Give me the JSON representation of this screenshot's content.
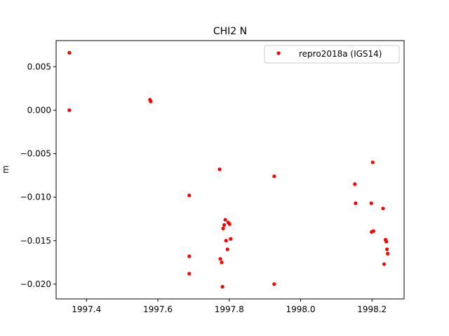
{
  "chart_data": {
    "type": "scatter",
    "title": "CHI2 N",
    "xlabel": "",
    "ylabel": "m",
    "xlim": [
      1997.315,
      1998.29
    ],
    "ylim": [
      -0.0217,
      0.008
    ],
    "xticks": [
      1997.4,
      1997.6,
      1997.8,
      1998.0,
      1998.2
    ],
    "xtick_labels": [
      "1997.4",
      "1997.6",
      "1997.8",
      "1998.0",
      "1998.2"
    ],
    "yticks": [
      0.005,
      0.0,
      -0.005,
      -0.01,
      -0.015,
      -0.02
    ],
    "ytick_labels": [
      "0.005",
      "0.000",
      "−0.005",
      "−0.010",
      "−0.015",
      "−0.020"
    ],
    "grid": false,
    "legend_position": "top-right",
    "series": [
      {
        "name": "repro2018a (IGS14)",
        "color": "#ff0000",
        "marker": "circle",
        "points": [
          [
            1997.352,
            0.0066
          ],
          [
            1997.352,
            0.0
          ],
          [
            1997.578,
            0.0012
          ],
          [
            1997.58,
            0.001
          ],
          [
            1997.688,
            -0.0098
          ],
          [
            1997.688,
            -0.0168
          ],
          [
            1997.688,
            -0.0188
          ],
          [
            1997.773,
            -0.0068
          ],
          [
            1997.775,
            -0.0171
          ],
          [
            1997.779,
            -0.0175
          ],
          [
            1997.781,
            -0.0203
          ],
          [
            1997.783,
            -0.0136
          ],
          [
            1997.786,
            -0.0132
          ],
          [
            1997.789,
            -0.0126
          ],
          [
            1997.791,
            -0.015
          ],
          [
            1997.795,
            -0.016
          ],
          [
            1997.797,
            -0.0129
          ],
          [
            1997.801,
            -0.0131
          ],
          [
            1997.804,
            -0.0148
          ],
          [
            1997.926,
            -0.0076
          ],
          [
            1997.926,
            -0.02
          ],
          [
            1998.152,
            -0.0085
          ],
          [
            1998.154,
            -0.0107
          ],
          [
            1998.198,
            -0.0107
          ],
          [
            1998.199,
            -0.014
          ],
          [
            1998.202,
            -0.006
          ],
          [
            1998.204,
            -0.0139
          ],
          [
            1998.231,
            -0.0113
          ],
          [
            1998.234,
            -0.0177
          ],
          [
            1998.238,
            -0.0149
          ],
          [
            1998.24,
            -0.0151
          ],
          [
            1998.242,
            -0.016
          ],
          [
            1998.244,
            -0.0165
          ]
        ]
      }
    ]
  }
}
